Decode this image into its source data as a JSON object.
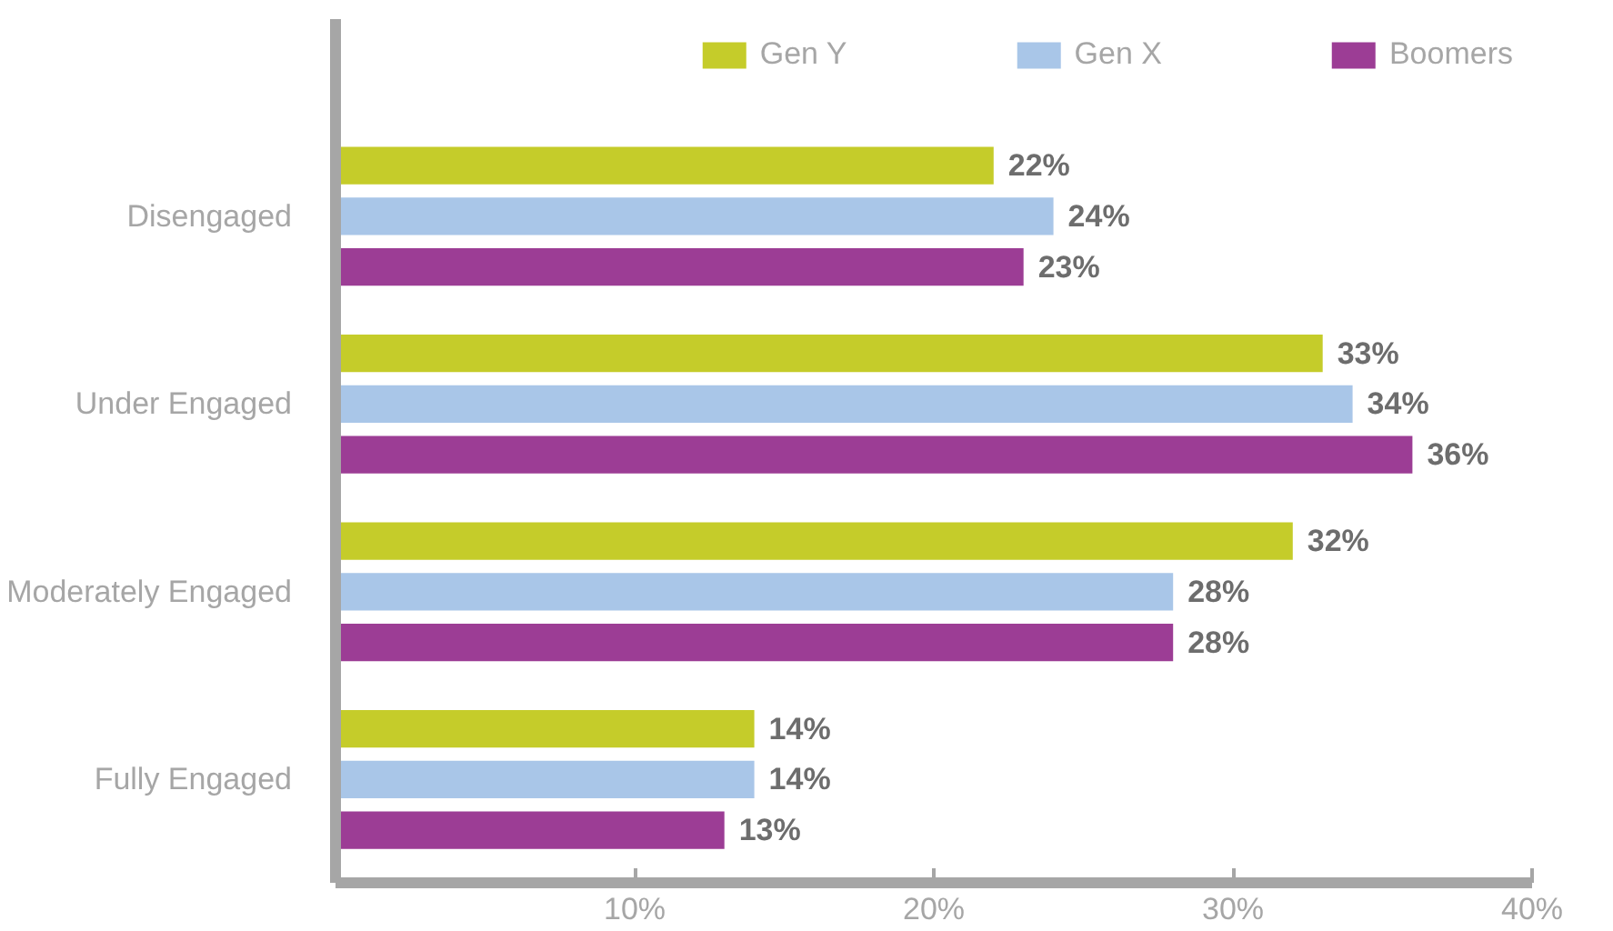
{
  "chart_data": {
    "type": "bar",
    "orientation": "horizontal",
    "categories": [
      "Disengaged",
      "Under Engaged",
      "Moderately Engaged",
      "Fully Engaged"
    ],
    "series": [
      {
        "name": "Gen Y",
        "color": "#c5cc2a",
        "values": [
          22,
          33,
          32,
          14
        ],
        "value_labels": [
          "22%",
          "33%",
          "32%",
          "14%"
        ]
      },
      {
        "name": "Gen X",
        "color": "#a9c6e8",
        "values": [
          24,
          34,
          28,
          14
        ],
        "value_labels": [
          "24%",
          "34%",
          "28%",
          "14%"
        ]
      },
      {
        "name": "Boomers",
        "color": "#9c3d95",
        "values": [
          23,
          36,
          28,
          13
        ],
        "value_labels": [
          "23%",
          "36%",
          "28%",
          "13%"
        ]
      }
    ],
    "xlim": [
      0,
      40
    ],
    "xticks": [
      {
        "value": 10,
        "label": "10%"
      },
      {
        "value": 20,
        "label": "20%"
      },
      {
        "value": 30,
        "label": "30%"
      },
      {
        "value": 40,
        "label": "40%"
      }
    ],
    "grid": false,
    "legend": "top"
  }
}
